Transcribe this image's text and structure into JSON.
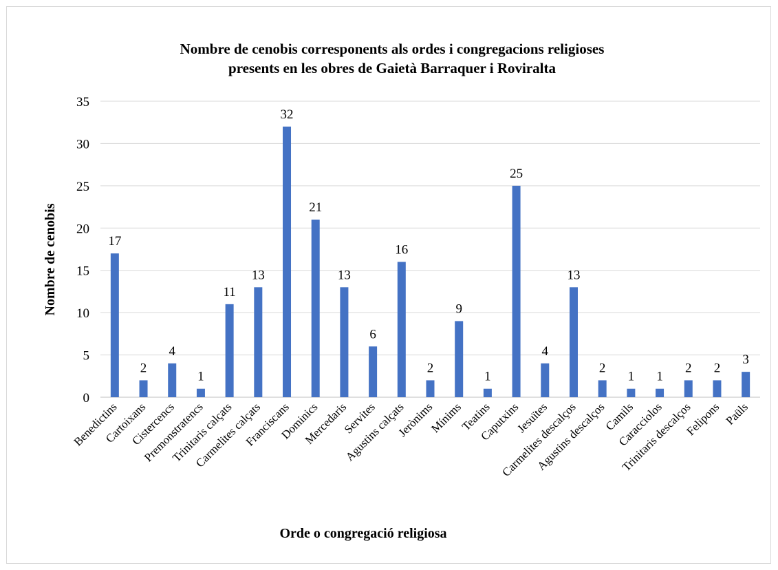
{
  "chart_data": {
    "type": "bar",
    "title": "Nombre de cenobis corresponents als ordes i congregacions religioses presents en les obres de Gaietà Barraquer i Roviralta",
    "title_lines": [
      "Nombre de cenobis corresponents als ordes i congregacions religioses",
      "presents en les obres de Gaietà Barraquer i Roviralta"
    ],
    "xlabel": "Orde o congregació religiosa",
    "ylabel": "Nombre de cenobis",
    "ylim": [
      0,
      35
    ],
    "yticks": [
      0,
      5,
      10,
      15,
      20,
      25,
      30,
      35
    ],
    "grid": true,
    "legend": "none",
    "bar_color": "#4472c4",
    "categories": [
      "Benedictins",
      "Cartoixans",
      "Cistercencs",
      "Premonstratencs",
      "Trinitaris calçats",
      "Carmelites calçats",
      "Franciscans",
      "Dominics",
      "Mercedaris",
      "Servites",
      "Agustins calçats",
      "Jerònims",
      "Mínims",
      "Teatins",
      "Caputxins",
      "Jesuïtes",
      "Carmelites descalços",
      "Agustins descalços",
      "Camils",
      "Caracciolos",
      "Trinitaris descalços",
      "Felipons",
      "Paüls"
    ],
    "values": [
      17,
      2,
      4,
      1,
      11,
      13,
      32,
      21,
      13,
      6,
      16,
      2,
      9,
      1,
      25,
      4,
      13,
      2,
      1,
      1,
      2,
      2,
      3
    ]
  }
}
